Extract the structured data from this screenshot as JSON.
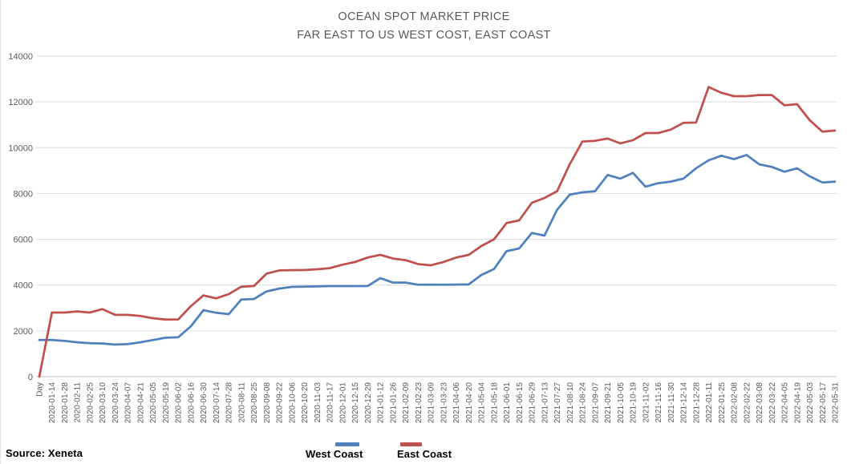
{
  "title": {
    "line1": "OCEAN SPOT MARKET PRICE",
    "line2": "FAR EAST TO US WEST COST, EAST COAST"
  },
  "source_note": "Source: Xeneta",
  "colors": {
    "west_coast": "#4F81BD",
    "east_coast": "#C0504D",
    "gridline": "#D9D9D9",
    "axis_line": "#BFBFBF",
    "muted_text": "#595959",
    "background": "#FFFFFF"
  },
  "chart_data": {
    "type": "line",
    "title": "OCEAN SPOT MARKET PRICE",
    "subtitle": "FAR EAST TO US WEST COST, EAST COAST",
    "xlabel": "",
    "ylabel": "",
    "ylim": [
      0,
      14000
    ],
    "yticks": [
      0,
      2000,
      4000,
      6000,
      8000,
      10000,
      12000,
      14000
    ],
    "grid": "horizontal",
    "legend_position": "bottom",
    "x_tick_rotation": -90,
    "categories": [
      "Day",
      "2020-01-14",
      "2020-01-28",
      "2020-02-11",
      "2020-02-25",
      "2020-03-10",
      "2020-03-24",
      "2020-04-07",
      "2020-04-21",
      "2020-05-05",
      "2020-05-19",
      "2020-06-02",
      "2020-06-16",
      "2020-06-30",
      "2020-07-14",
      "2020-07-28",
      "2020-08-11",
      "2020-08-25",
      "2020-09-08",
      "2020-09-22",
      "2020-10-06",
      "2020-10-20",
      "2020-11-03",
      "2020-11-17",
      "2020-12-01",
      "2020-12-15",
      "2020-12-29",
      "2021-01-12",
      "2021-01-26",
      "2021-02-09",
      "2021-02-23",
      "2021-03-09",
      "2021-03-23",
      "2021-04-06",
      "2021-04-20",
      "2021-05-04",
      "2021-05-18",
      "2021-06-01",
      "2021-06-15",
      "2021-06-29",
      "2021-07-13",
      "2021-07-27",
      "2021-08-10",
      "2021-08-24",
      "2021-09-07",
      "2021-09-21",
      "2021-10-05",
      "2021-10-19",
      "2021-11-02",
      "2021-11-16",
      "2021-11-30",
      "2021-12-14",
      "2021-12-28",
      "2022-01-11",
      "2022-01-25",
      "2022-02-08",
      "2022-02-22",
      "2022-03-08",
      "2022-03-22",
      "2022-04-05",
      "2022-04-19",
      "2022-05-03",
      "2022-05-17",
      "2022-05-31"
    ],
    "series": [
      {
        "name": "West Coast",
        "color": "#4F81BD",
        "values": [
          1600,
          1600,
          1560,
          1500,
          1460,
          1450,
          1400,
          1420,
          1500,
          1600,
          1700,
          1720,
          2200,
          2905,
          2790,
          2730,
          3370,
          3390,
          3725,
          3845,
          3920,
          3930,
          3940,
          3955,
          3955,
          3955,
          3960,
          4300,
          4110,
          4110,
          4015,
          4015,
          4015,
          4020,
          4030,
          4440,
          4700,
          5480,
          5600,
          6275,
          6160,
          7290,
          7950,
          8050,
          8100,
          8810,
          8650,
          8900,
          8300,
          8450,
          8520,
          8650,
          9100,
          9450,
          9650,
          9500,
          9680,
          9275,
          9160,
          8950,
          9100,
          8750,
          8480,
          8520
        ]
      },
      {
        "name": "East Coast",
        "color": "#C0504D",
        "values": [
          0,
          2800,
          2800,
          2850,
          2800,
          2950,
          2700,
          2700,
          2650,
          2550,
          2495,
          2500,
          3080,
          3550,
          3420,
          3605,
          3930,
          3960,
          4500,
          4640,
          4650,
          4660,
          4690,
          4740,
          4890,
          5010,
          5205,
          5320,
          5160,
          5090,
          4915,
          4865,
          5010,
          5200,
          5320,
          5705,
          6000,
          6710,
          6825,
          7595,
          7800,
          8100,
          9275,
          10270,
          10300,
          10400,
          10190,
          10330,
          10640,
          10640,
          10790,
          11085,
          11100,
          12650,
          12400,
          12250,
          12250,
          12300,
          12300,
          11850,
          11900,
          11200,
          10700,
          10750
        ]
      }
    ]
  }
}
